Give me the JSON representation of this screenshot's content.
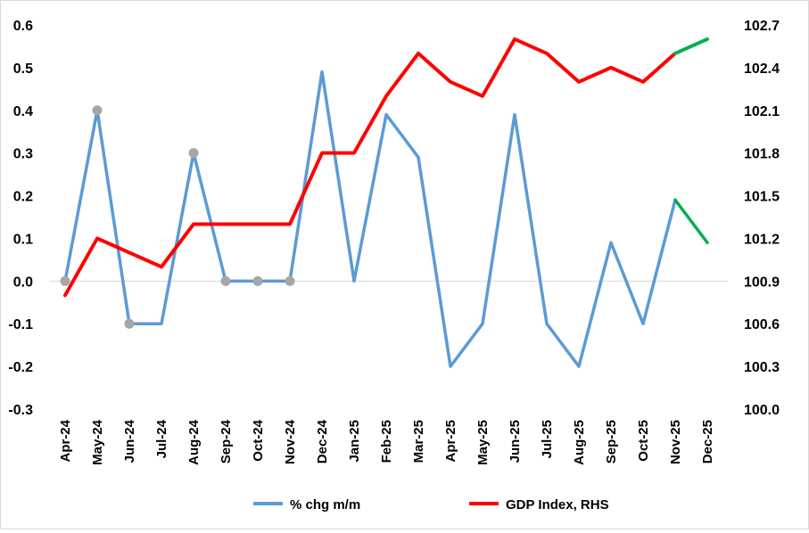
{
  "chart_data": {
    "type": "line",
    "title": "",
    "xlabel": "",
    "ylabel": "",
    "categories": [
      "Apr-24",
      "May-24",
      "Jun-24",
      "Jul-24",
      "Aug-24",
      "Sep-24",
      "Oct-24",
      "Nov-24",
      "Dec-24",
      "Jan-25",
      "Feb-25",
      "Mar-25",
      "Apr-25",
      "May-25",
      "Jun-25",
      "Jul-25",
      "Aug-25",
      "Sep-25",
      "Oct-25",
      "Nov-25",
      "Dec-25"
    ],
    "y_left": {
      "lim": [
        -0.3,
        0.6
      ],
      "ticks": [
        "-0.3",
        "-0.2",
        "-0.1",
        "0.0",
        "0.1",
        "0.2",
        "0.3",
        "0.4",
        "0.5",
        "0.6"
      ],
      "tick_values": [
        -0.3,
        -0.2,
        -0.1,
        0.0,
        0.1,
        0.2,
        0.3,
        0.4,
        0.5,
        0.6
      ]
    },
    "y_right": {
      "lim": [
        100.0,
        102.7
      ],
      "ticks": [
        "100.0",
        "100.3",
        "100.6",
        "100.9",
        "101.2",
        "101.5",
        "101.8",
        "102.1",
        "102.4",
        "102.7"
      ],
      "tick_values": [
        100.0,
        100.3,
        100.6,
        100.9,
        101.2,
        101.5,
        101.8,
        102.1,
        102.4,
        102.7
      ]
    },
    "series": [
      {
        "name": "% chg m/m",
        "axis": "left",
        "color": "#5b9bd5",
        "forecast_color": "#00b050",
        "forecast_from_index": 19,
        "marker_color": "#a6a6a6",
        "marker_indices": [
          0,
          1,
          2,
          4,
          5,
          6,
          7
        ],
        "values": [
          0.0,
          0.4,
          -0.1,
          -0.1,
          0.3,
          0.0,
          0.0,
          0.0,
          0.49,
          0.0,
          0.39,
          0.29,
          -0.2,
          -0.1,
          0.39,
          -0.1,
          -0.2,
          0.09,
          -0.1,
          0.19,
          0.09
        ]
      },
      {
        "name": "GDP Index, RHS",
        "axis": "right",
        "color": "#ff0000",
        "forecast_color": "#00b050",
        "forecast_from_index": 19,
        "values": [
          100.8,
          101.2,
          101.1,
          101.0,
          101.3,
          101.3,
          101.3,
          101.3,
          101.8,
          101.8,
          102.2,
          102.5,
          102.3,
          102.2,
          102.6,
          102.5,
          102.3,
          102.4,
          102.3,
          102.5,
          102.6
        ]
      }
    ],
    "legend": {
      "position": "bottom",
      "items": [
        {
          "label": "% chg m/m",
          "color": "#5b9bd5"
        },
        {
          "label": "GDP Index, RHS",
          "color": "#ff0000"
        }
      ]
    },
    "grid": false
  }
}
